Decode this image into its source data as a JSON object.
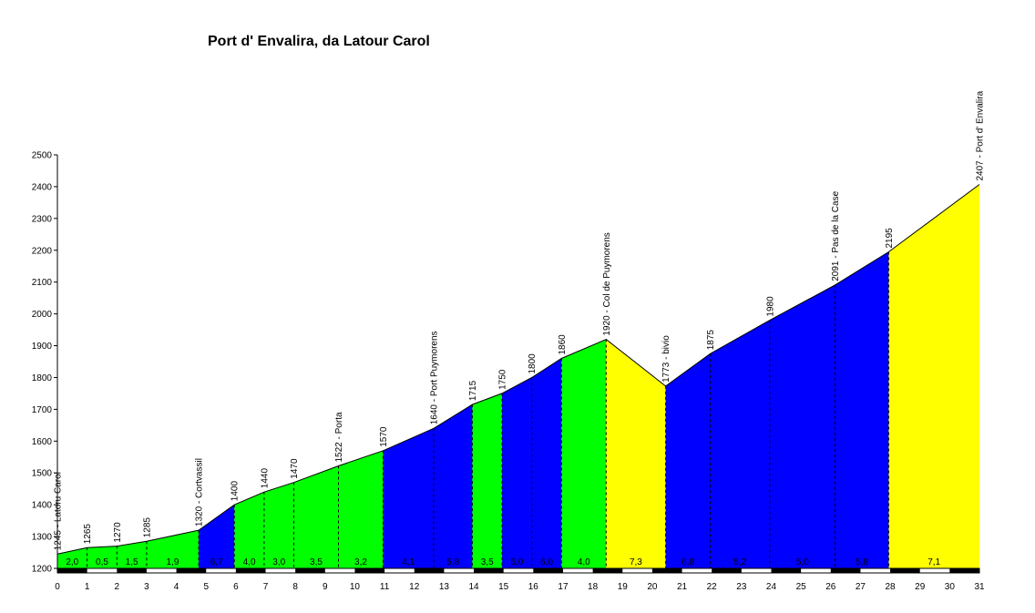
{
  "chart_data": {
    "type": "area",
    "title": "Port d' Envalira, da Latour Carol",
    "xlim": [
      0,
      31
    ],
    "ylim": [
      1200,
      2500
    ],
    "x_ticks": [
      "0",
      "1",
      "2",
      "3",
      "4",
      "5",
      "6",
      "7",
      "8",
      "9",
      "10",
      "11",
      "12",
      "13",
      "14",
      "15",
      "16",
      "17",
      "18",
      "19",
      "20",
      "21",
      "22",
      "23",
      "24",
      "25",
      "26",
      "27",
      "28",
      "29",
      "30",
      "31"
    ],
    "y_ticks": [
      "1200",
      "1300",
      "1400",
      "1500",
      "1600",
      "1700",
      "1800",
      "1900",
      "2000",
      "2100",
      "2200",
      "2300",
      "2400",
      "2500"
    ],
    "profile": [
      {
        "x": 0.0,
        "y": 1245,
        "label": "1245 - Latoru Carol"
      },
      {
        "x": 1.0,
        "y": 1265,
        "label": "1265"
      },
      {
        "x": 2.0,
        "y": 1270,
        "label": "1270"
      },
      {
        "x": 3.0,
        "y": 1285,
        "label": "1285"
      },
      {
        "x": 4.75,
        "y": 1320,
        "label": "1320 - Cortvassil"
      },
      {
        "x": 5.95,
        "y": 1400,
        "label": "1400"
      },
      {
        "x": 6.95,
        "y": 1440,
        "label": "1440"
      },
      {
        "x": 7.95,
        "y": 1470,
        "label": "1470"
      },
      {
        "x": 9.45,
        "y": 1522,
        "label": "1522 - Porta"
      },
      {
        "x": 10.95,
        "y": 1570,
        "label": "1570"
      },
      {
        "x": 12.65,
        "y": 1640,
        "label": "1640 - Port Puymorens"
      },
      {
        "x": 13.95,
        "y": 1715,
        "label": "1715"
      },
      {
        "x": 14.95,
        "y": 1750,
        "label": "1750"
      },
      {
        "x": 15.95,
        "y": 1800,
        "label": "1800"
      },
      {
        "x": 16.95,
        "y": 1860,
        "label": "1860"
      },
      {
        "x": 18.45,
        "y": 1920,
        "label": "1920 - Col de Puymorens"
      },
      {
        "x": 20.45,
        "y": 1773,
        "label": "1773 - bivio"
      },
      {
        "x": 21.95,
        "y": 1875,
        "label": "1875"
      },
      {
        "x": 23.95,
        "y": 1980,
        "label": "1980"
      },
      {
        "x": 26.15,
        "y": 2091,
        "label": "2091 - Pas de la Case"
      },
      {
        "x": 27.95,
        "y": 2195,
        "label": "2195"
      },
      {
        "x": 31.0,
        "y": 2407,
        "label": "2407 - Port d' Envalira"
      }
    ],
    "segments": [
      {
        "from": 0.0,
        "to": 4.75,
        "color": "#00ff00",
        "gradients": [
          {
            "x": 0.0,
            "to": 1.0,
            "label": "2,0"
          },
          {
            "x": 1.0,
            "to": 2.0,
            "label": "0,5"
          },
          {
            "x": 2.0,
            "to": 3.0,
            "label": "1,5"
          },
          {
            "x": 3.0,
            "to": 4.75,
            "label": "1,9"
          }
        ]
      },
      {
        "from": 4.75,
        "to": 5.95,
        "color": "#0000ff",
        "gradients": [
          {
            "x": 4.75,
            "to": 5.95,
            "label": "6,7"
          }
        ]
      },
      {
        "from": 5.95,
        "to": 10.95,
        "color": "#00ff00",
        "gradients": [
          {
            "x": 5.95,
            "to": 6.95,
            "label": "4,0"
          },
          {
            "x": 6.95,
            "to": 7.95,
            "label": "3,0"
          },
          {
            "x": 7.95,
            "to": 9.45,
            "label": "3,5"
          },
          {
            "x": 9.45,
            "to": 10.95,
            "label": "3,2"
          }
        ]
      },
      {
        "from": 10.95,
        "to": 13.95,
        "color": "#0000ff",
        "gradients": [
          {
            "x": 10.95,
            "to": 12.65,
            "label": "4,1"
          },
          {
            "x": 12.65,
            "to": 13.95,
            "label": "5,8"
          }
        ]
      },
      {
        "from": 13.95,
        "to": 14.95,
        "color": "#00ff00",
        "gradients": [
          {
            "x": 13.95,
            "to": 14.95,
            "label": "3,5"
          }
        ]
      },
      {
        "from": 14.95,
        "to": 16.95,
        "color": "#0000ff",
        "gradients": [
          {
            "x": 14.95,
            "to": 15.95,
            "label": "5,0"
          },
          {
            "x": 15.95,
            "to": 16.95,
            "label": "6,0"
          }
        ]
      },
      {
        "from": 16.95,
        "to": 18.45,
        "color": "#00ff00",
        "gradients": [
          {
            "x": 16.95,
            "to": 18.45,
            "label": "4,0"
          }
        ]
      },
      {
        "from": 18.45,
        "to": 20.45,
        "color": "#ffff00",
        "gradients": [
          {
            "x": 18.45,
            "to": 20.45,
            "label": "7,3"
          }
        ]
      },
      {
        "from": 20.45,
        "to": 27.95,
        "color": "#0000ff",
        "gradients": [
          {
            "x": 20.45,
            "to": 21.95,
            "label": "6,8"
          },
          {
            "x": 21.95,
            "to": 23.95,
            "label": "5,2"
          },
          {
            "x": 23.95,
            "to": 26.15,
            "label": "5,0"
          },
          {
            "x": 26.15,
            "to": 27.95,
            "label": "5,8"
          }
        ]
      },
      {
        "from": 27.95,
        "to": 31.0,
        "color": "#ffff00",
        "gradients": [
          {
            "x": 27.95,
            "to": 31.0,
            "label": "7,1"
          }
        ]
      }
    ]
  }
}
